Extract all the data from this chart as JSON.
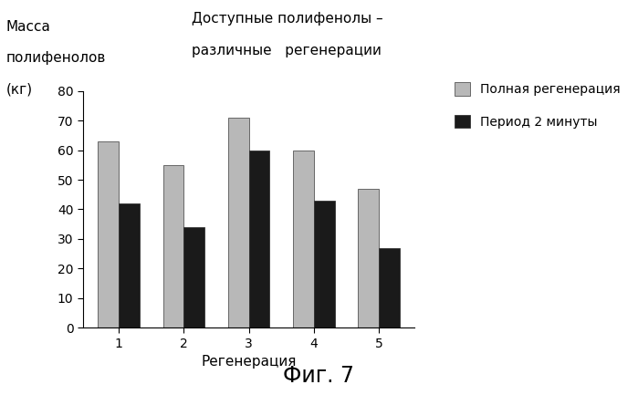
{
  "categories": [
    "1",
    "2",
    "3",
    "4",
    "5"
  ],
  "series1_label": "Полная регенерация",
  "series2_label": "Период 2 минуты",
  "series1_values": [
    63,
    55,
    71,
    60,
    47
  ],
  "series2_values": [
    42,
    34,
    60,
    43,
    27
  ],
  "series1_color": "#b8b8b8",
  "series2_color": "#1a1a1a",
  "series1_hatch": "///",
  "series2_hatch": "///",
  "ylabel_line1": "Масса",
  "ylabel_line2": "полифенолов",
  "ylabel_line3": "(кг)",
  "xlabel": "Регенерация",
  "title_line1": "Доступные полифенолы –",
  "title_line2": "различные   регенерации",
  "ylim": [
    0,
    80
  ],
  "yticks": [
    0,
    10,
    20,
    30,
    40,
    50,
    60,
    70,
    80
  ],
  "fig_caption": "Фиг. 7",
  "background_color": "#ffffff",
  "bar_width": 0.32,
  "title_fontsize": 11,
  "axis_fontsize": 11,
  "legend_fontsize": 10,
  "tick_fontsize": 10,
  "caption_fontsize": 17,
  "ylabel_fontsize": 11
}
